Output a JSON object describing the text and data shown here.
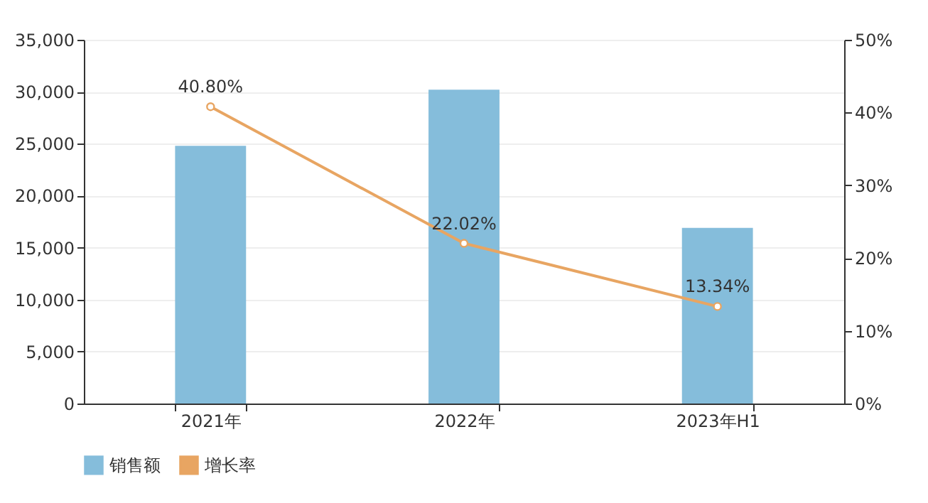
{
  "chart_data": {
    "type": "bar",
    "categories": [
      "2021年",
      "2022年",
      "2023年H1"
    ],
    "series": [
      {
        "name": "销售额",
        "color": "#85bddb",
        "values": [
          24800,
          30200,
          16900
        ]
      },
      {
        "name": "增长率",
        "type": "line",
        "axis": "y2",
        "color": "#e8a562",
        "marker": "circle",
        "values": [
          40.8,
          22.02,
          13.34
        ],
        "value_labels": [
          "40.80%",
          "22.02%",
          "13.34%"
        ]
      }
    ],
    "ylim": [
      0,
      35000
    ],
    "yticks": [
      0,
      {
        "value": 5000,
        "label": "5,000"
      },
      {
        "value": 10000,
        "label": "10,000"
      },
      {
        "value": 15000,
        "label": "15,000"
      },
      {
        "value": 20000,
        "label": "20,000"
      },
      {
        "value": 25000,
        "label": "25,000"
      },
      {
        "value": 30000,
        "label": "30,000"
      },
      {
        "value": 35000,
        "label": "35,000"
      }
    ],
    "y2lim": [
      0,
      50
    ],
    "y2ticks": [
      {
        "value": 0,
        "label": "0%"
      },
      {
        "value": 10,
        "label": "10%"
      },
      {
        "value": 20,
        "label": "20%"
      },
      {
        "value": 30,
        "label": "30%"
      },
      {
        "value": 40,
        "label": "40%"
      },
      {
        "value": 50,
        "label": "50%"
      }
    ],
    "grid": "y",
    "legend": "bottom"
  }
}
